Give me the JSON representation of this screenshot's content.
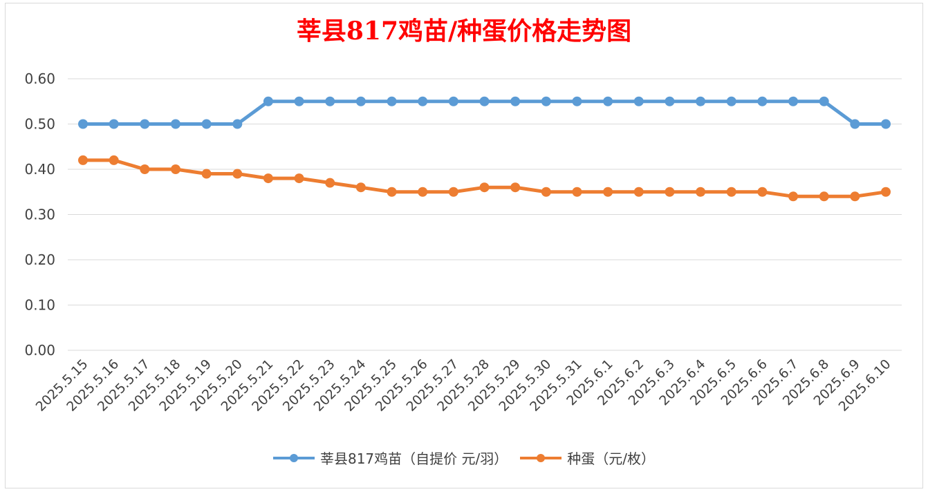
{
  "chart_data": {
    "type": "line",
    "title": "莘县817鸡苗/种蛋价格走势图",
    "xlabel": "",
    "ylabel": "",
    "ylim": [
      0,
      0.6
    ],
    "y_ticks": [
      "0.00",
      "0.10",
      "0.20",
      "0.30",
      "0.40",
      "0.50",
      "0.60"
    ],
    "y_tick_values": [
      0,
      0.1,
      0.2,
      0.3,
      0.4,
      0.5,
      0.6
    ],
    "grid": true,
    "legend_position": "bottom",
    "categories": [
      "2025.5.15",
      "2025.5.16",
      "2025.5.17",
      "2025.5.18",
      "2025.5.19",
      "2025.5.20",
      "2025.5.21",
      "2025.5.22",
      "2025.5.23",
      "2025.5.24",
      "2025.5.25",
      "2025.5.26",
      "2025.5.27",
      "2025.5.28",
      "2025.5.29",
      "2025.5.30",
      "2025.5.31",
      "2025.6.1",
      "2025.6.2",
      "2025.6.3",
      "2025.6.4",
      "2025.6.5",
      "2025.6.6",
      "2025.6.7",
      "2025.6.8",
      "2025.6.9",
      "2025.6.10"
    ],
    "series": [
      {
        "name": "莘县817鸡苗（自提价 元/羽）",
        "color": "#5b9bd5",
        "values": [
          0.5,
          0.5,
          0.5,
          0.5,
          0.5,
          0.5,
          0.55,
          0.55,
          0.55,
          0.55,
          0.55,
          0.55,
          0.55,
          0.55,
          0.55,
          0.55,
          0.55,
          0.55,
          0.55,
          0.55,
          0.55,
          0.55,
          0.55,
          0.55,
          0.55,
          0.5,
          0.5
        ]
      },
      {
        "name": "种蛋（元/枚）",
        "color": "#ed7d31",
        "values": [
          0.42,
          0.42,
          0.4,
          0.4,
          0.39,
          0.39,
          0.38,
          0.38,
          0.37,
          0.36,
          0.35,
          0.35,
          0.35,
          0.36,
          0.36,
          0.35,
          0.35,
          0.35,
          0.35,
          0.35,
          0.35,
          0.35,
          0.35,
          0.34,
          0.34,
          0.34,
          0.35
        ]
      }
    ]
  }
}
